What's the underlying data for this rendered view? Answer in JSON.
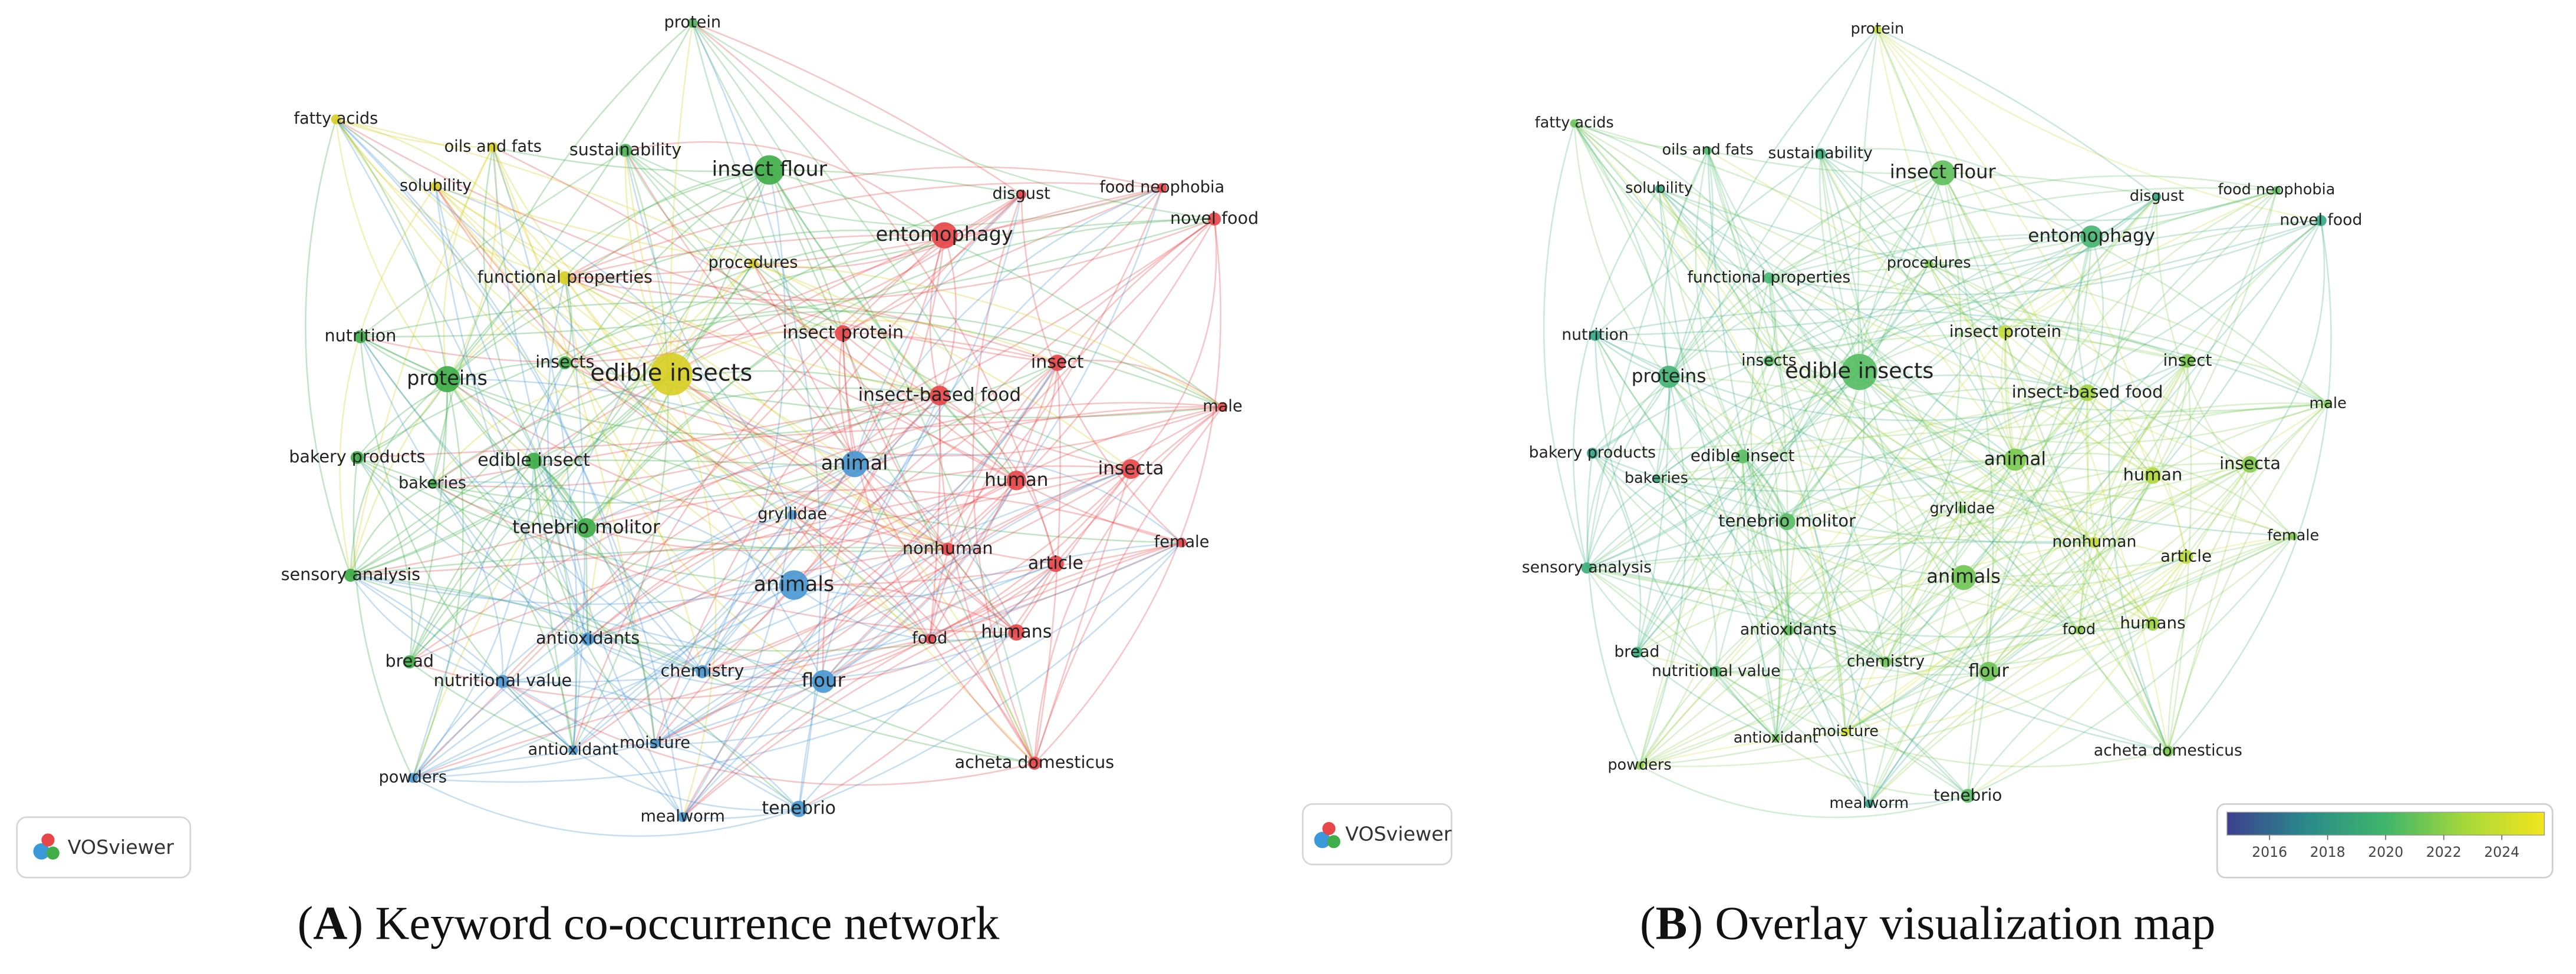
{
  "panels": [
    {
      "caption": {
        "open": "(",
        "letter": "A",
        "text": ") Keyword co-occurrence network"
      },
      "logo": "VOSviewer"
    },
    {
      "caption": {
        "open": "(",
        "letter": "B",
        "text": ") Overlay visualization map"
      },
      "logo": "VOSviewer",
      "overlay_legend": {
        "ticks": [
          "2016",
          "2018",
          "2020",
          "2022",
          "2024"
        ],
        "colors": [
          "#3e3f8f",
          "#2a8a8a",
          "#3fb56a",
          "#a6d83a",
          "#f2e51d"
        ]
      }
    }
  ],
  "nodes": [
    {
      "label": "protein",
      "cluster_color": "#4fb35a",
      "overlay_color": "#c8dc3a"
    },
    {
      "label": "fatty acids",
      "cluster_color": "#d8cf26",
      "overlay_color": "#6cc55a"
    },
    {
      "label": "oils and fats",
      "cluster_color": "#d8cf26",
      "overlay_color": "#4cb870"
    },
    {
      "label": "sustainability",
      "cluster_color": "#4fb35a",
      "overlay_color": "#3ab17a"
    },
    {
      "label": "insect flour",
      "cluster_color": "#3fae49",
      "overlay_color": "#62c05c"
    },
    {
      "label": "solubility",
      "cluster_color": "#d8cf26",
      "overlay_color": "#3aac82"
    },
    {
      "label": "entomophagy",
      "cluster_color": "#e8474a",
      "overlay_color": "#48b672"
    },
    {
      "label": "disgust",
      "cluster_color": "#e8474a",
      "overlay_color": "#3aaa85"
    },
    {
      "label": "food neophobia",
      "cluster_color": "#e8474a",
      "overlay_color": "#5cbe62"
    },
    {
      "label": "novel food",
      "cluster_color": "#e8474a",
      "overlay_color": "#38a98a"
    },
    {
      "label": "functional properties",
      "cluster_color": "#d8cf26",
      "overlay_color": "#4ab774"
    },
    {
      "label": "procedures",
      "cluster_color": "#d8cf26",
      "overlay_color": "#7cca50"
    },
    {
      "label": "nutrition",
      "cluster_color": "#3fae49",
      "overlay_color": "#36a78a"
    },
    {
      "label": "insect protein",
      "cluster_color": "#e8474a",
      "overlay_color": "#c6dc38"
    },
    {
      "label": "insect",
      "cluster_color": "#e8474a",
      "overlay_color": "#7ccb4e"
    },
    {
      "label": "proteins",
      "cluster_color": "#3fae49",
      "overlay_color": "#46b476"
    },
    {
      "label": "insects",
      "cluster_color": "#3fae49",
      "overlay_color": "#5abd66"
    },
    {
      "label": "edible insects",
      "cluster_color": "#d8cf26",
      "overlay_color": "#58bd64"
    },
    {
      "label": "insect-based food",
      "cluster_color": "#e8474a",
      "overlay_color": "#a2d642"
    },
    {
      "label": "male",
      "cluster_color": "#e8474a",
      "overlay_color": "#7fcb4e"
    },
    {
      "label": "bakery products",
      "cluster_color": "#3fae49",
      "overlay_color": "#38a98a"
    },
    {
      "label": "edible insect",
      "cluster_color": "#3fae49",
      "overlay_color": "#5cbe64"
    },
    {
      "label": "bakeries",
      "cluster_color": "#3fae49",
      "overlay_color": "#3aab86"
    },
    {
      "label": "animal",
      "cluster_color": "#4a98d3",
      "overlay_color": "#7ccb50"
    },
    {
      "label": "human",
      "cluster_color": "#e8474a",
      "overlay_color": "#b2d83e"
    },
    {
      "label": "insecta",
      "cluster_color": "#e8474a",
      "overlay_color": "#86cd4c"
    },
    {
      "label": "gryllidae",
      "cluster_color": "#4a98d3",
      "overlay_color": "#6fc656"
    },
    {
      "label": "tenebrio molitor",
      "cluster_color": "#3fae49",
      "overlay_color": "#5abd66"
    },
    {
      "label": "female",
      "cluster_color": "#e8474a",
      "overlay_color": "#86cd4c"
    },
    {
      "label": "nonhuman",
      "cluster_color": "#e8474a",
      "overlay_color": "#c4da3a"
    },
    {
      "label": "article",
      "cluster_color": "#e8474a",
      "overlay_color": "#bcda3c"
    },
    {
      "label": "sensory analysis",
      "cluster_color": "#3fae49",
      "overlay_color": "#3fb07c"
    },
    {
      "label": "animals",
      "cluster_color": "#4a98d3",
      "overlay_color": "#72c756"
    },
    {
      "label": "antioxidants",
      "cluster_color": "#4a98d3",
      "overlay_color": "#62c05e"
    },
    {
      "label": "humans",
      "cluster_color": "#e8474a",
      "overlay_color": "#9ed444"
    },
    {
      "label": "food",
      "cluster_color": "#e8474a",
      "overlay_color": "#8ccf4a"
    },
    {
      "label": "bread",
      "cluster_color": "#3fae49",
      "overlay_color": "#3ab07e"
    },
    {
      "label": "chemistry",
      "cluster_color": "#4a98d3",
      "overlay_color": "#6cc558"
    },
    {
      "label": "nutritional value",
      "cluster_color": "#4a98d3",
      "overlay_color": "#52ba6c"
    },
    {
      "label": "flour",
      "cluster_color": "#4a98d3",
      "overlay_color": "#6ec656"
    },
    {
      "label": "antioxidant",
      "cluster_color": "#4a98d3",
      "overlay_color": "#6ac55a"
    },
    {
      "label": "moisture",
      "cluster_color": "#4a98d3",
      "overlay_color": "#d6df30"
    },
    {
      "label": "acheta domesticus",
      "cluster_color": "#e8474a",
      "overlay_color": "#7ccb50"
    },
    {
      "label": "powders",
      "cluster_color": "#4a98d3",
      "overlay_color": "#8ccf4a"
    },
    {
      "label": "mealworm",
      "cluster_color": "#4a98d3",
      "overlay_color": "#32a48e"
    },
    {
      "label": "tenebrio",
      "cluster_color": "#4a98d3",
      "overlay_color": "#5abd66"
    }
  ]
}
